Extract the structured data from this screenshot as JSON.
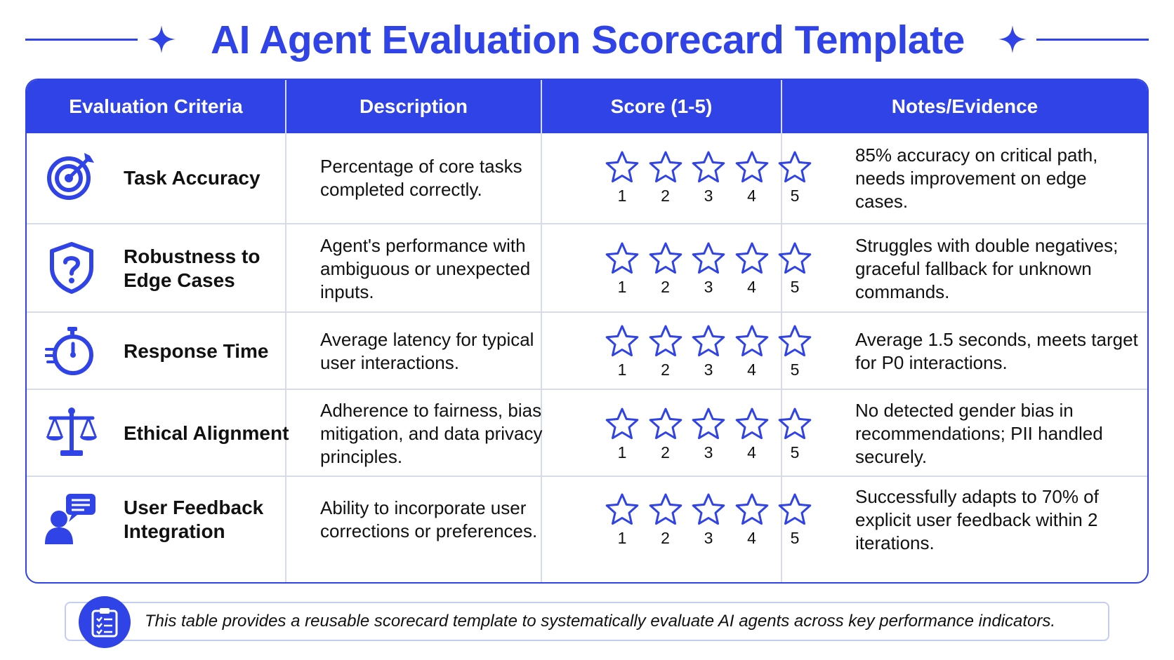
{
  "title": "AI Agent Evaluation Scorecard Template",
  "colors": {
    "accent": "#2f43e6",
    "grid": "#d7dbe6",
    "text": "#111111"
  },
  "headers": [
    "Evaluation Criteria",
    "Description",
    "Score (1-5)",
    "Notes/Evidence"
  ],
  "rating_scale": [
    "1",
    "2",
    "3",
    "4",
    "5"
  ],
  "rows": [
    {
      "icon": "target-icon",
      "criterion": "Task Accuracy",
      "description": "Percentage of core tasks completed correctly.",
      "score": null,
      "notes": "85% accuracy on critical path, needs improvement on edge cases."
    },
    {
      "icon": "shield-question-icon",
      "criterion": "Robustness to Edge Cases",
      "description": "Agent's performance with ambiguous or unexpected inputs.",
      "score": null,
      "notes": "Struggles with double negatives; graceful fallback for unknown commands."
    },
    {
      "icon": "stopwatch-icon",
      "criterion": "Response Time",
      "description": "Average latency for typical user interactions.",
      "score": null,
      "notes": "Average 1.5 seconds, meets target for P0 interactions."
    },
    {
      "icon": "scales-icon",
      "criterion": "Ethical Alignment",
      "description": "Adherence to fairness, bias mitigation, and data privacy principles.",
      "score": null,
      "notes": "No detected gender bias in recommendations; PII handled securely."
    },
    {
      "icon": "user-chat-icon",
      "criterion": "User Feedback Integration",
      "description": "Ability to incorporate user corrections or preferences.",
      "score": null,
      "notes": "Successfully adapts to 70% of explicit user feedback within 2 iterations."
    }
  ],
  "footer": {
    "icon": "clipboard-checklist-icon",
    "text": "This table provides a reusable scorecard template to systematically evaluate AI agents across key performance indicators."
  }
}
